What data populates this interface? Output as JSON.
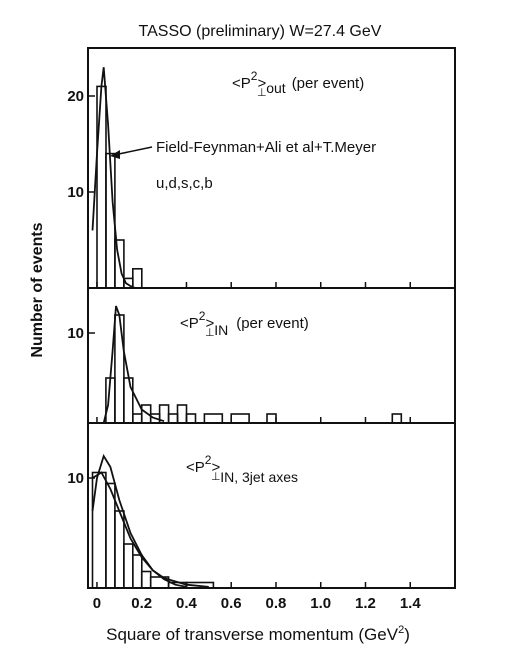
{
  "figure": {
    "title": "TASSO   (preliminary)   W=27.4 GeV",
    "xlabel": "Square of transverse momentum (GeV",
    "xlabel_sup": "2",
    "xlabel_end": ")",
    "ylabel": "Number  of  events"
  },
  "chart_data": [
    {
      "type": "bar",
      "panel": "top",
      "label_base": "<P",
      "label_sup": "2",
      "label_sub_perp": "⊥",
      "label_rest": ">",
      "label_sub": "out",
      "label_suffix": "(per event)",
      "annotation": "Field-Feynman+Ali et al+T.Meyer",
      "annotation2": "u,d,s,c,b",
      "xlim": [
        -0.04,
        1.6
      ],
      "ylim": [
        0,
        25
      ],
      "yticks": [
        10,
        20
      ],
      "bins": [
        {
          "x0": 0.0,
          "x1": 0.04,
          "y": 21
        },
        {
          "x0": 0.04,
          "x1": 0.08,
          "y": 14
        },
        {
          "x0": 0.08,
          "x1": 0.12,
          "y": 5
        },
        {
          "x0": 0.12,
          "x1": 0.16,
          "y": 1
        },
        {
          "x0": 0.16,
          "x1": 0.2,
          "y": 2
        }
      ],
      "curve": {
        "x": [
          -0.02,
          0.0,
          0.02,
          0.03,
          0.05,
          0.07,
          0.09,
          0.11,
          0.13,
          0.15,
          0.17
        ],
        "y": [
          6,
          14,
          21,
          23,
          17,
          9,
          4,
          1.5,
          0.5,
          0.2,
          0
        ]
      }
    },
    {
      "type": "bar",
      "panel": "middle",
      "label_base": "<P",
      "label_sup": "2",
      "label_sub_perp": "⊥",
      "label_rest": ">",
      "label_sub": "IN",
      "label_suffix": "(per event)",
      "xlim": [
        -0.04,
        1.6
      ],
      "ylim": [
        0,
        15
      ],
      "yticks": [
        10
      ],
      "bins": [
        {
          "x0": 0.04,
          "x1": 0.08,
          "y": 5
        },
        {
          "x0": 0.08,
          "x1": 0.12,
          "y": 12
        },
        {
          "x0": 0.12,
          "x1": 0.16,
          "y": 5
        },
        {
          "x0": 0.16,
          "x1": 0.2,
          "y": 1
        },
        {
          "x0": 0.2,
          "x1": 0.24,
          "y": 2
        },
        {
          "x0": 0.24,
          "x1": 0.28,
          "y": 1
        },
        {
          "x0": 0.28,
          "x1": 0.32,
          "y": 2
        },
        {
          "x0": 0.32,
          "x1": 0.36,
          "y": 1
        },
        {
          "x0": 0.36,
          "x1": 0.4,
          "y": 2
        },
        {
          "x0": 0.4,
          "x1": 0.44,
          "y": 1
        },
        {
          "x0": 0.48,
          "x1": 0.56,
          "y": 1
        },
        {
          "x0": 0.6,
          "x1": 0.68,
          "y": 1
        },
        {
          "x0": 0.76,
          "x1": 0.8,
          "y": 1
        },
        {
          "x0": 1.32,
          "x1": 1.36,
          "y": 1
        }
      ],
      "curve": {
        "x": [
          0.03,
          0.05,
          0.07,
          0.085,
          0.1,
          0.12,
          0.15,
          0.2,
          0.25,
          0.3
        ],
        "y": [
          0,
          2,
          8,
          13,
          12,
          8,
          4,
          1.5,
          0.6,
          0.2
        ]
      }
    },
    {
      "type": "bar",
      "panel": "bottom",
      "label_base": "<P",
      "label_sup": "2",
      "label_sub_perp": "⊥",
      "label_rest": ">",
      "label_sub": "IN, 3jet axes",
      "label_suffix": "",
      "xlim": [
        -0.04,
        1.6
      ],
      "ylim": [
        0,
        15
      ],
      "yticks": [
        10
      ],
      "bins": [
        {
          "x0": -0.02,
          "x1": 0.04,
          "y": 10.5
        },
        {
          "x0": 0.04,
          "x1": 0.08,
          "y": 9.5
        },
        {
          "x0": 0.08,
          "x1": 0.12,
          "y": 7
        },
        {
          "x0": 0.12,
          "x1": 0.16,
          "y": 4
        },
        {
          "x0": 0.16,
          "x1": 0.2,
          "y": 3
        },
        {
          "x0": 0.2,
          "x1": 0.24,
          "y": 1.5
        },
        {
          "x0": 0.24,
          "x1": 0.32,
          "y": 1
        },
        {
          "x0": 0.32,
          "x1": 0.4,
          "y": 0.5
        },
        {
          "x0": 0.4,
          "x1": 0.52,
          "y": 0.5
        }
      ],
      "curve": {
        "x": [
          -0.02,
          0.0,
          0.03,
          0.06,
          0.1,
          0.15,
          0.2,
          0.25,
          0.3,
          0.35,
          0.4
        ],
        "y": [
          7,
          10,
          12,
          11,
          8,
          5,
          3,
          1.6,
          0.8,
          0.3,
          0.1
        ]
      },
      "curve2": {
        "x": [
          -0.02,
          0.02,
          0.06,
          0.1,
          0.15,
          0.2,
          0.25,
          0.3,
          0.4,
          0.5
        ],
        "y": [
          10,
          10.5,
          9,
          7,
          4.5,
          2.8,
          1.6,
          0.9,
          0.3,
          0.1
        ]
      }
    }
  ],
  "xaxis": {
    "ticks": [
      "0",
      "0.2",
      "0.4",
      "0.6",
      "0.8",
      "1.0",
      "1.2",
      "1.4"
    ],
    "tick_values": [
      0,
      0.2,
      0.4,
      0.6,
      0.8,
      1.0,
      1.2,
      1.4
    ]
  }
}
